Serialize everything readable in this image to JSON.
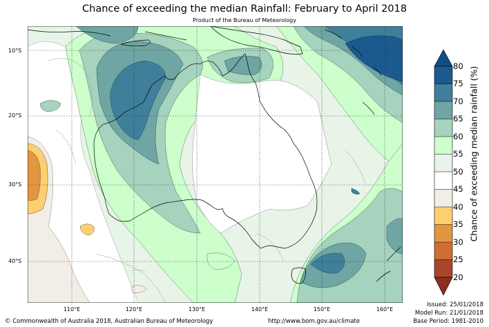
{
  "title": "Chance of exceeding the median Rainfall: February to April 2018",
  "subtitle": "Product of the Bureau of Meteorology",
  "lat_labels": [
    "10°S",
    "20°S",
    "30°S",
    "40°S"
  ],
  "lon_labels": [
    "110°E",
    "120°E",
    "130°E",
    "140°E",
    "150°E",
    "160°E"
  ],
  "colorbar": {
    "title": "Chance of exceeding median rainfall (%)",
    "ticks": [
      "80",
      "75",
      "70",
      "65",
      "60",
      "55",
      "50",
      "45",
      "40",
      "35",
      "30",
      "25",
      "20"
    ],
    "colors": {
      "c75_80": "#1a5a8f",
      "c70_75": "#3f7f9a",
      "c65_70": "#6fa5a3",
      "c60_65": "#a5d3bd",
      "c55_60": "#ccffcc",
      "c50_55": "#e8f4e8",
      "c45_50": "#ffffff",
      "c40_45": "#f2ede6",
      "c35_40": "#fdcf6f",
      "c30_35": "#e3963f",
      "c25_30": "#cf6d33",
      "c20_25": "#a8462a",
      "over": "#124d85",
      "under": "#8c2f1e"
    }
  },
  "footer": {
    "copyright": "© Commonwealth of Australia 2018, Australian Bureau of Meteorology",
    "url": "http://www.bom.gov.au/climate",
    "issued": "Issued: 25/01/2018",
    "model_run": "Model Run: 21/01/2018",
    "base_period": "Base Period: 1981-2010"
  }
}
